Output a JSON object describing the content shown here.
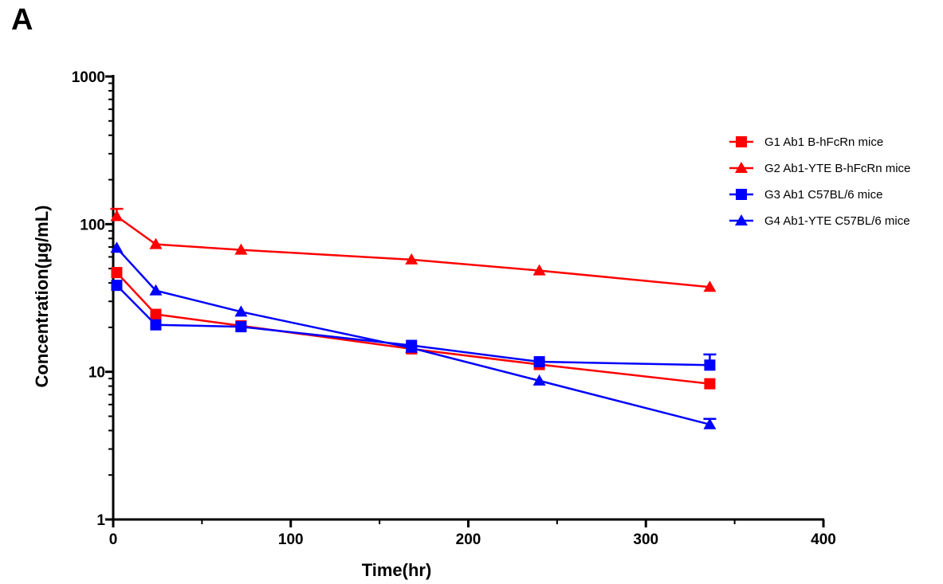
{
  "panel_label": "A",
  "chart_data": {
    "type": "line",
    "title": "",
    "xlabel": "Time(hr)",
    "ylabel": "Concentration(µg/mL)",
    "x_scale": "linear",
    "y_scale": "log",
    "xlim": [
      0,
      400
    ],
    "ylim": [
      1,
      1000
    ],
    "x_ticks": [
      0,
      100,
      200,
      300,
      400
    ],
    "y_ticks": [
      1,
      10,
      100,
      1000
    ],
    "x_tick_labels": [
      "0",
      "100",
      "200",
      "300",
      "400"
    ],
    "y_tick_labels": [
      "1",
      "10",
      "100",
      "1000"
    ],
    "grid": false,
    "legend_position": "right",
    "x": [
      2,
      24,
      72,
      168,
      240,
      336
    ],
    "series": [
      {
        "name": "G1 Ab1 B-hFcRn mice",
        "color": "#ff0000",
        "marker": "square",
        "values": [
          47,
          24.5,
          20.5,
          14.3,
          11.2,
          8.3
        ],
        "error": [
          0,
          0,
          0,
          0,
          0,
          0
        ]
      },
      {
        "name": "G2 Ab1-YTE B-hFcRn mice",
        "color": "#ff0000",
        "marker": "triangle",
        "values": [
          113,
          73,
          67,
          57.5,
          48.5,
          37.5
        ],
        "error": [
          14,
          0,
          0,
          0,
          0,
          0
        ]
      },
      {
        "name": "G3 Ab1 C57BL/6 mice",
        "color": "#0000ff",
        "marker": "square",
        "values": [
          38.5,
          20.8,
          20.2,
          15.1,
          11.7,
          11.1
        ],
        "error": [
          0,
          0,
          0,
          0,
          0,
          2
        ]
      },
      {
        "name": "G4 Ab1-YTE C57BL/6 mice",
        "color": "#0000ff",
        "marker": "triangle",
        "values": [
          69,
          35.5,
          25.5,
          14.5,
          8.7,
          4.4
        ],
        "error": [
          0,
          0,
          0,
          0,
          0,
          0.4
        ]
      }
    ]
  }
}
